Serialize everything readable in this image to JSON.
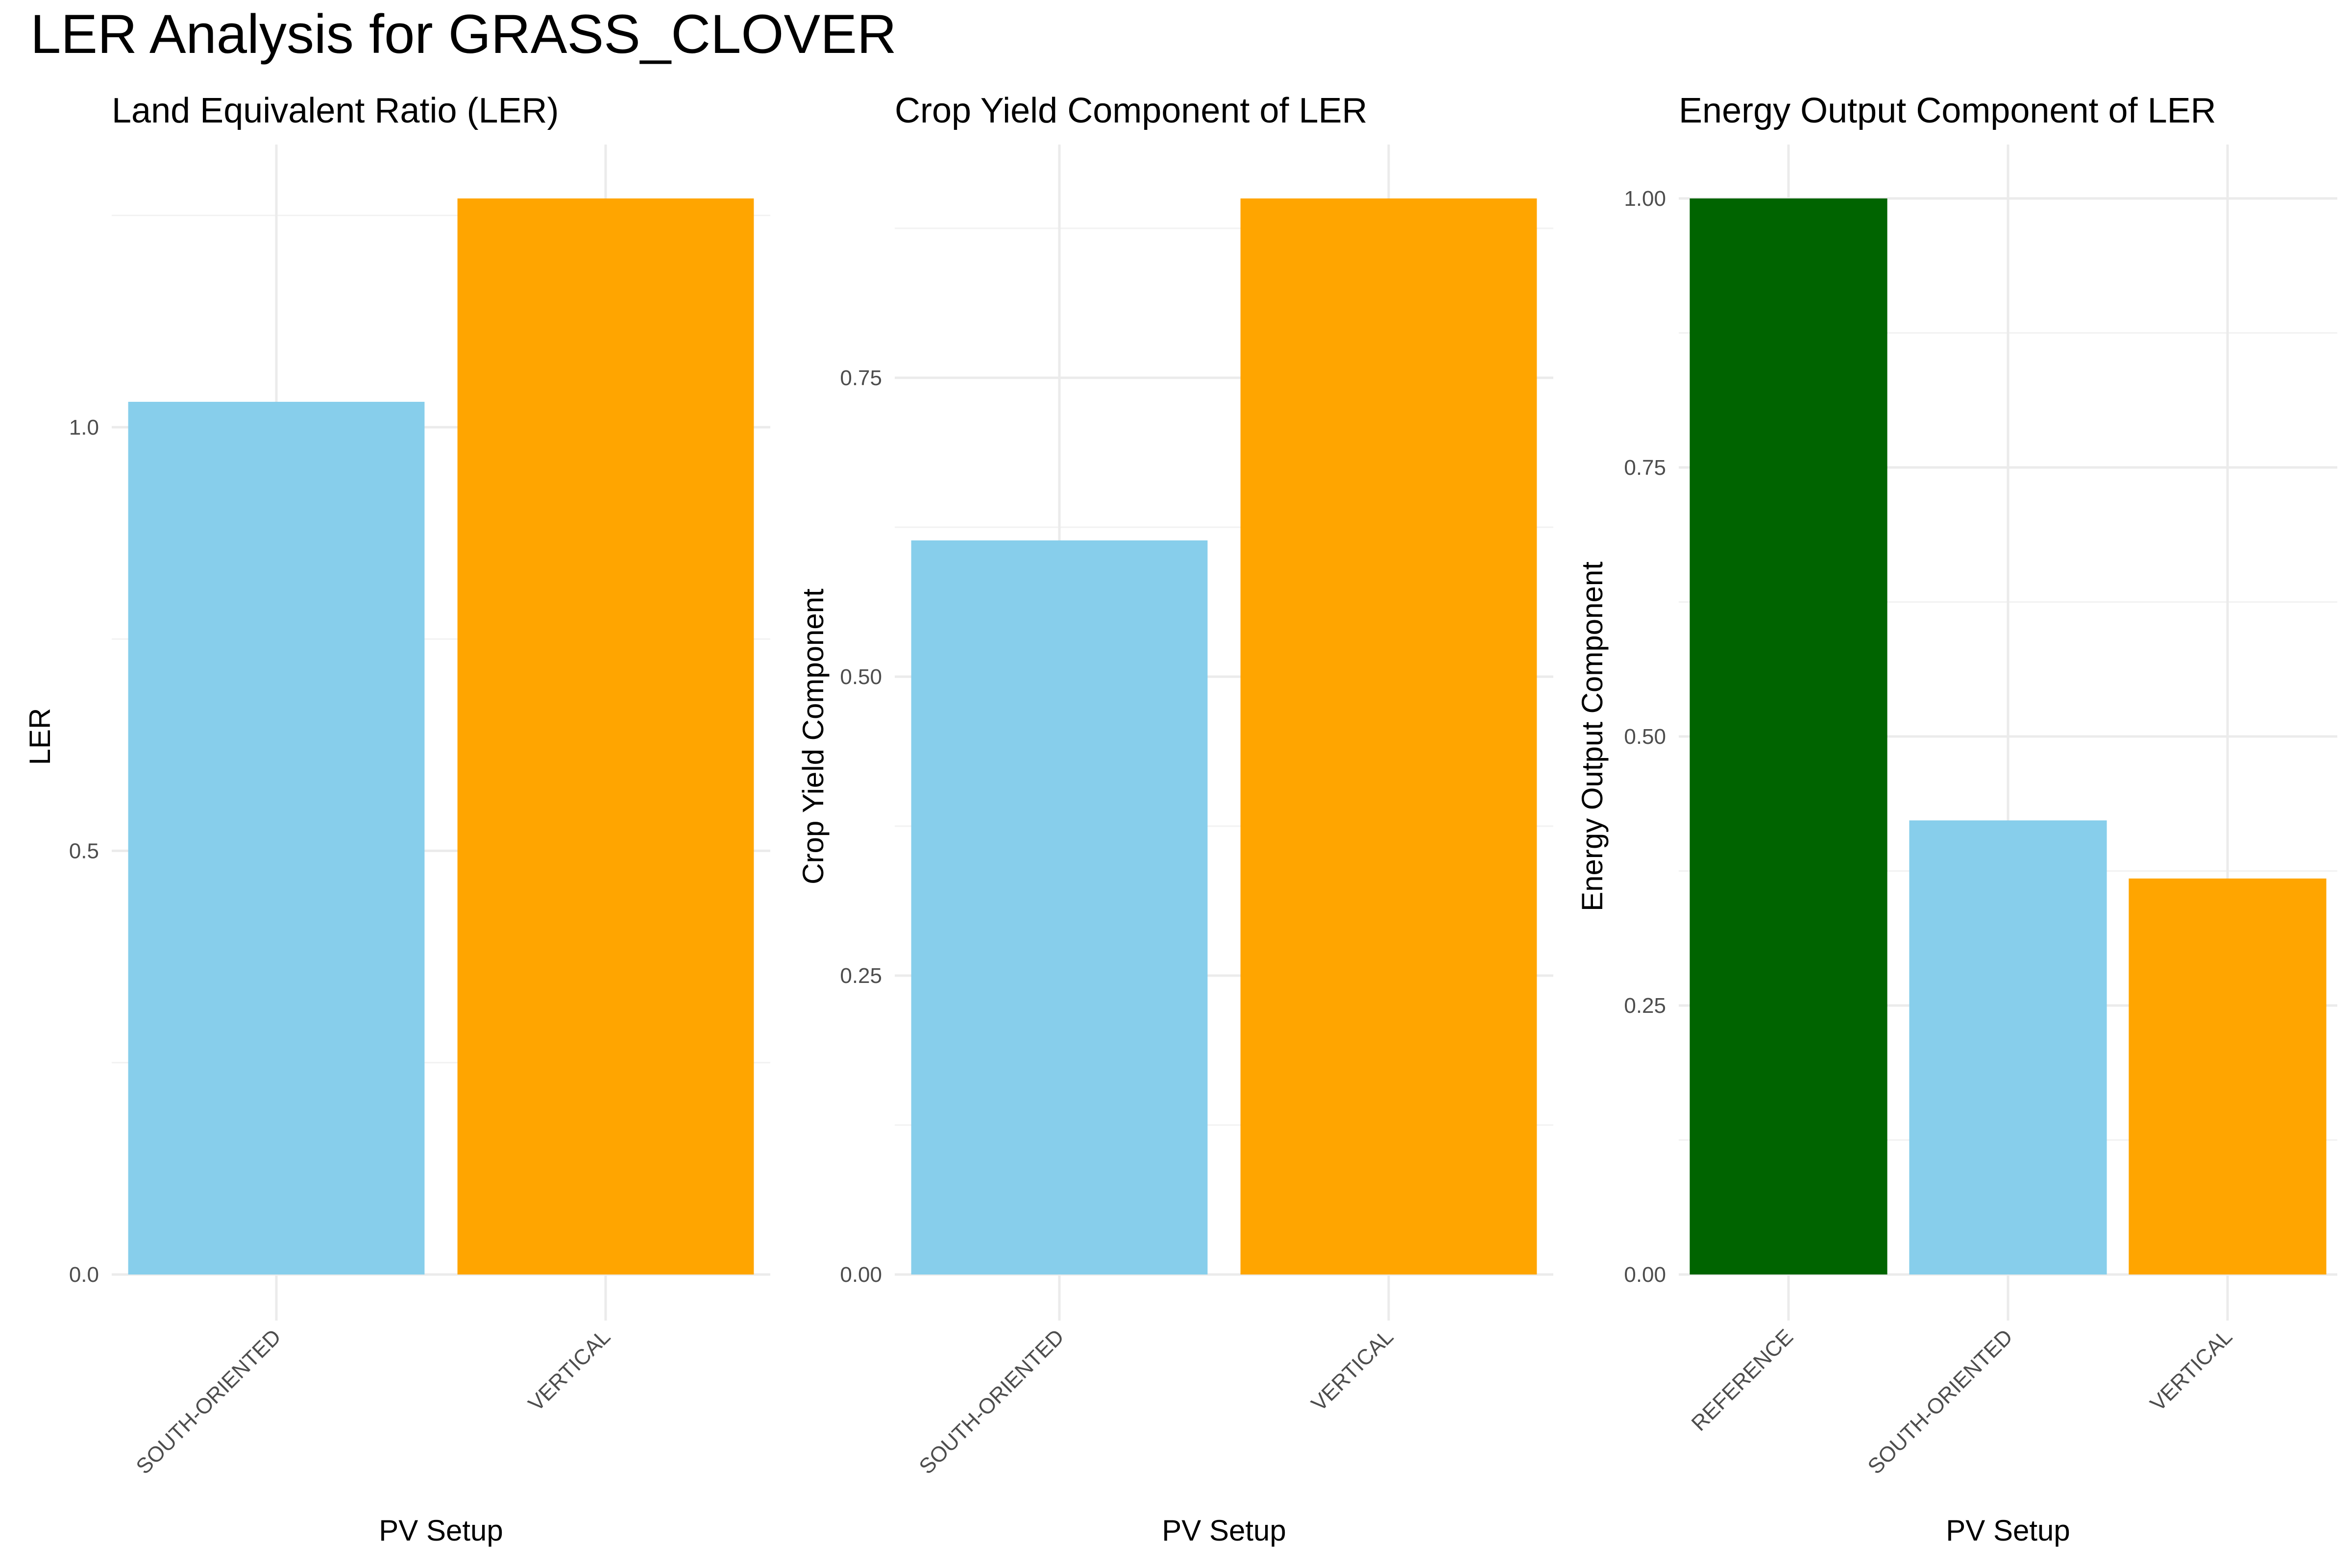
{
  "figure": {
    "title": "LER Analysis for GRASS_CLOVER"
  },
  "colors": {
    "REFERENCE": "#006400",
    "SOUTH-ORIENTED": "#87CEEB",
    "VERTICAL": "#FFA500"
  },
  "chart_data": [
    {
      "type": "bar",
      "title": "Land Equivalent Ratio (LER)",
      "xlabel": "PV Setup",
      "ylabel": "LER",
      "categories": [
        "SOUTH-ORIENTED",
        "VERTICAL"
      ],
      "values": [
        1.03,
        1.27
      ],
      "ylim": [
        0,
        1.27
      ],
      "yticks": [
        0.0,
        0.5,
        1.0
      ],
      "ytick_labels": [
        "0.0",
        "0.5",
        "1.0"
      ],
      "grid": true
    },
    {
      "type": "bar",
      "title": "Crop Yield Component of LER",
      "xlabel": "PV Setup",
      "ylabel": "Crop Yield Component",
      "categories": [
        "SOUTH-ORIENTED",
        "VERTICAL"
      ],
      "values": [
        0.614,
        0.9
      ],
      "ylim": [
        0,
        0.9
      ],
      "yticks": [
        0.0,
        0.25,
        0.5,
        0.75
      ],
      "ytick_labels": [
        "0.00",
        "0.25",
        "0.50",
        "0.75"
      ],
      "grid": true
    },
    {
      "type": "bar",
      "title": "Energy Output Component of LER",
      "xlabel": "PV Setup",
      "ylabel": "Energy Output Component",
      "categories": [
        "REFERENCE",
        "SOUTH-ORIENTED",
        "VERTICAL"
      ],
      "values": [
        1.0,
        0.422,
        0.368
      ],
      "ylim": [
        0,
        1.0
      ],
      "yticks": [
        0.0,
        0.25,
        0.5,
        0.75,
        1.0
      ],
      "ytick_labels": [
        "0.00",
        "0.25",
        "0.50",
        "0.75",
        "1.00"
      ],
      "grid": true
    }
  ]
}
